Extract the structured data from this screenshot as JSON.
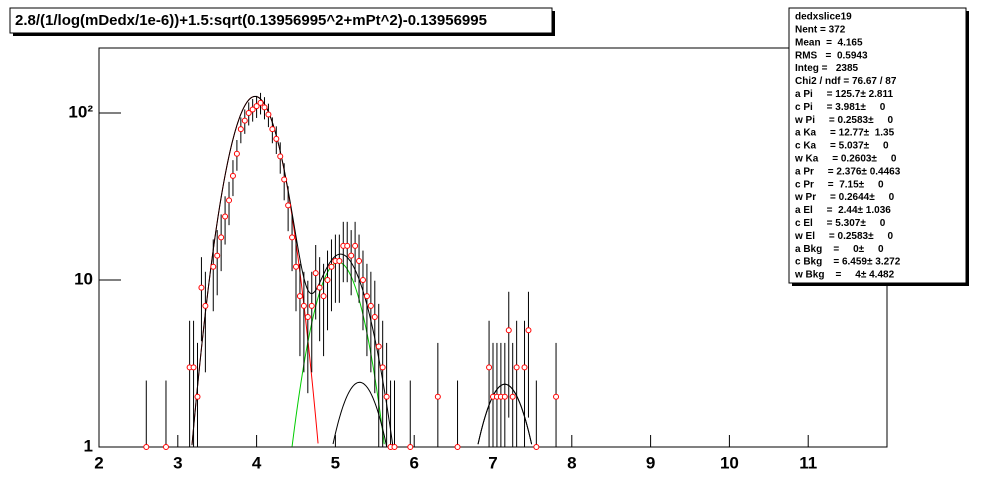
{
  "chart_data": {
    "type": "errorbar",
    "title": "2.8/(1/log(mDedx/1e-6))+1.5:sqrt(0.13956995^2+mPt^2)-0.13956995",
    "log_y": true,
    "grid": false,
    "xlim": [
      2,
      12
    ],
    "ylim": [
      1,
      245
    ],
    "xticks": [
      2,
      3,
      4,
      5,
      6,
      7,
      8,
      9,
      10,
      11
    ],
    "yticks": [
      1,
      10,
      {
        "value": 100,
        "label": "10²"
      }
    ],
    "marker_color": "#ff0000",
    "errorbar_color": "#000000",
    "x": [
      2.6,
      2.85,
      3.15,
      3.2,
      3.25,
      3.3,
      3.35,
      3.45,
      3.5,
      3.55,
      3.6,
      3.65,
      3.7,
      3.75,
      3.8,
      3.85,
      3.9,
      3.95,
      4.0,
      4.05,
      4.1,
      4.15,
      4.2,
      4.25,
      4.3,
      4.35,
      4.4,
      4.45,
      4.5,
      4.55,
      4.6,
      4.65,
      4.7,
      4.75,
      4.8,
      4.85,
      4.9,
      4.95,
      5.0,
      5.05,
      5.1,
      5.15,
      5.2,
      5.25,
      5.3,
      5.35,
      5.4,
      5.45,
      5.5,
      5.55,
      5.6,
      5.65,
      5.7,
      5.75,
      5.95,
      6.3,
      6.55,
      6.95,
      7.0,
      7.05,
      7.1,
      7.15,
      7.2,
      7.25,
      7.3,
      7.4,
      7.45,
      7.55,
      7.8
    ],
    "values": [
      1,
      1,
      3,
      3,
      2,
      9,
      7,
      12,
      14,
      18,
      24,
      30,
      42,
      57,
      80,
      90,
      100,
      105,
      110,
      115,
      108,
      98,
      80,
      70,
      55,
      40,
      28,
      18,
      12,
      8,
      7,
      6,
      7,
      11,
      9,
      8,
      10,
      12,
      13,
      13,
      16,
      16,
      14,
      16,
      13,
      10,
      8,
      7,
      6,
      4,
      3,
      2,
      1,
      1,
      1,
      2,
      1,
      3,
      2,
      2,
      2,
      2,
      5,
      2,
      3,
      3,
      5,
      1,
      2
    ],
    "errors": [
      1.5,
      1.5,
      2.7,
      2.7,
      2.2,
      4.7,
      4.2,
      5.5,
      5.9,
      6.7,
      7.7,
      8.7,
      10.2,
      11.9,
      14.1,
      15,
      15.8,
      16.2,
      16.6,
      17,
      16.4,
      15.7,
      14.1,
      13.2,
      11.7,
      10,
      8.4,
      6.7,
      5.5,
      4.5,
      4.2,
      3.9,
      4.2,
      5.2,
      4.7,
      4.5,
      5,
      5.5,
      5.7,
      5.7,
      6.3,
      6.3,
      5.9,
      6.3,
      5.7,
      5,
      4.5,
      4.2,
      3.9,
      3.2,
      2.7,
      2.2,
      1.5,
      1.5,
      1.5,
      2.2,
      1.5,
      2.7,
      2.2,
      2.2,
      2.2,
      2.2,
      3.5,
      2.2,
      2.7,
      2.7,
      3.5,
      1.5,
      2.2
    ],
    "fits": [
      {
        "color": "#ff0000",
        "a": 125.7,
        "c": 3.981,
        "w": 0.2583
      },
      {
        "color": "#00cc00",
        "a": 12.77,
        "c": 5.037,
        "w": 0.2603
      },
      {
        "color": "#000000",
        "a": 2.44,
        "c": 5.307,
        "w": 0.2583
      },
      {
        "color": "#000000",
        "a": 2.376,
        "c": 7.15,
        "w": 0.2644
      }
    ],
    "total_color": "#000000",
    "stats": [
      "dedxslice19",
      "Nent = 372",
      "Mean  =  4.165",
      "RMS   =  0.5943",
      "Integ =   2385",
      "Chi2 / ndf = 76.67 / 87",
      "a Pi     = 125.7± 2.811",
      "c Pi     = 3.981±     0",
      "w Pi     = 0.2583±     0",
      "a Ka     = 12.77±  1.35",
      "c Ka     = 5.037±     0",
      "w Ka     = 0.2603±     0",
      "a Pr     = 2.376± 0.4463",
      "c Pr     =  7.15±     0",
      "w Pr     = 0.2644±     0",
      "a El     =  2.44± 1.036",
      "c El     = 5.307±     0",
      "w El     = 0.2583±     0",
      "a Bkg    =     0±     0",
      "c Bkg    = 6.459± 3.272",
      "w Bkg    =     4± 4.482"
    ]
  }
}
